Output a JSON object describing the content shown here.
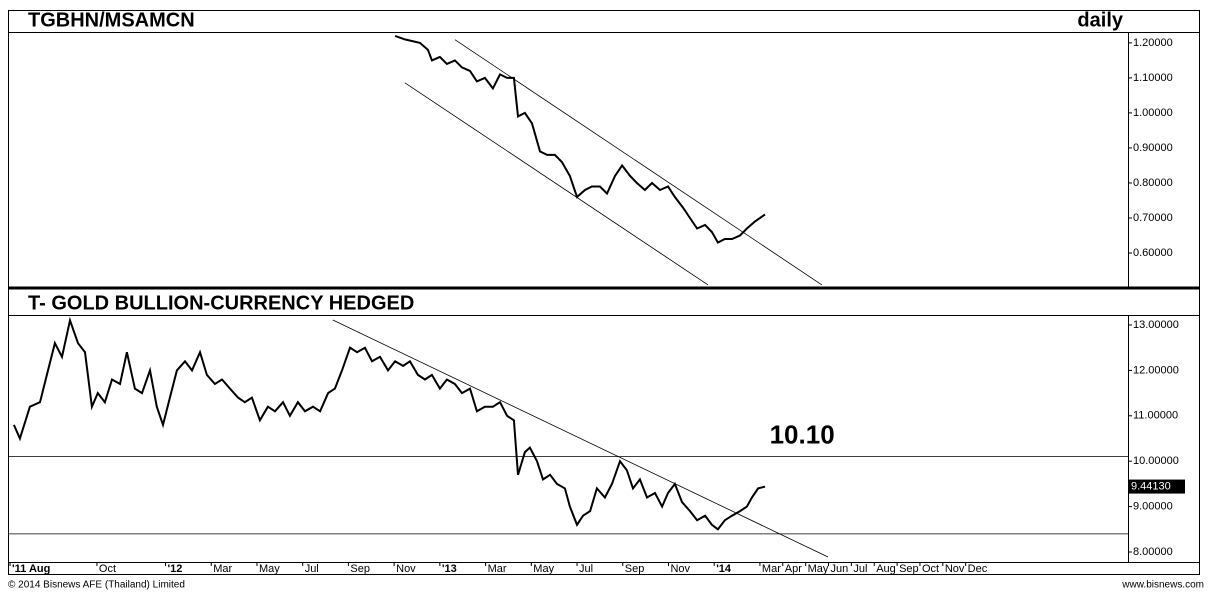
{
  "chart_data": [
    {
      "type": "line",
      "title": "TGBHN/MSAMCN",
      "subtitle": "daily",
      "color": "#000000",
      "x": [
        22.04,
        22.47,
        23.13,
        23.48,
        23.65,
        24.0,
        24.31,
        24.66,
        24.97,
        25.32,
        25.62,
        25.97,
        26.32,
        26.63,
        26.94,
        27.24,
        27.42,
        27.72,
        28.03,
        28.38,
        28.69,
        29.03,
        29.34,
        29.69,
        30.0,
        30.35,
        30.65,
        31.0,
        31.31,
        31.66,
        31.97,
        32.32,
        32.62,
        32.97,
        33.28,
        33.63,
        33.98,
        34.28,
        34.63,
        34.94,
        35.25,
        35.6,
        35.9,
        36.16,
        36.47,
        36.78,
        37.13,
        37.43,
        37.78,
        38.22
      ],
      "values": [
        1.22,
        1.21,
        1.2,
        1.18,
        1.15,
        1.16,
        1.14,
        1.15,
        1.13,
        1.12,
        1.09,
        1.1,
        1.07,
        1.11,
        1.1,
        1.1,
        0.99,
        1.0,
        0.97,
        0.89,
        0.88,
        0.88,
        0.86,
        0.82,
        0.76,
        0.78,
        0.79,
        0.79,
        0.77,
        0.82,
        0.85,
        0.82,
        0.8,
        0.78,
        0.8,
        0.78,
        0.79,
        0.76,
        0.73,
        0.7,
        0.67,
        0.68,
        0.66,
        0.63,
        0.64,
        0.64,
        0.65,
        0.67,
        0.69,
        0.71
      ],
      "xlim": [
        5.11,
        54.1
      ],
      "ylim": [
        0.503,
        1.231
      ],
      "yticks": [
        {
          "value": 0.6,
          "label": "0.60000"
        },
        {
          "value": 0.7,
          "label": "0.70000"
        },
        {
          "value": 0.8,
          "label": "0.80000"
        },
        {
          "value": 0.9,
          "label": "0.90000"
        },
        {
          "value": 1.0,
          "label": "1.00000"
        },
        {
          "value": 1.1,
          "label": "1.10000"
        },
        {
          "value": 1.2,
          "label": "1.20000"
        }
      ],
      "trendlines": [
        {
          "x": [
            24.66,
            40.71
          ],
          "y": [
            1.209,
            0.509
          ]
        },
        {
          "x": [
            22.47,
            35.73
          ],
          "y": [
            1.086,
            0.509
          ]
        }
      ]
    },
    {
      "type": "line",
      "title": "T- GOLD BULLION-CURRENCY HEDGED",
      "color": "#000000",
      "x": [
        5.37,
        5.63,
        6.07,
        6.51,
        6.86,
        7.16,
        7.47,
        7.82,
        8.17,
        8.48,
        8.78,
        9.04,
        9.35,
        9.66,
        10.01,
        10.31,
        10.66,
        10.97,
        11.32,
        11.62,
        11.89,
        12.19,
        12.5,
        12.85,
        13.16,
        13.51,
        13.81,
        14.16,
        14.47,
        14.82,
        15.17,
        15.47,
        15.78,
        16.13,
        16.48,
        16.79,
        17.14,
        17.44,
        17.79,
        18.1,
        18.45,
        18.76,
        19.11,
        19.41,
        19.72,
        20.07,
        20.38,
        20.72,
        21.03,
        21.38,
        21.73,
        22.04,
        22.39,
        22.69,
        23.04,
        23.35,
        23.65,
        24.0,
        24.31,
        24.66,
        24.97,
        25.32,
        25.62,
        25.97,
        26.32,
        26.63,
        26.94,
        27.24,
        27.42,
        27.72,
        27.94,
        28.25,
        28.51,
        28.82,
        29.12,
        29.47,
        29.69,
        30.0,
        30.26,
        30.57,
        30.87,
        31.22,
        31.53,
        31.88,
        32.18,
        32.45,
        32.75,
        33.06,
        33.41,
        33.72,
        33.98,
        34.28,
        34.59,
        34.94,
        35.25,
        35.6,
        35.9,
        36.16,
        36.47,
        36.78,
        37.13,
        37.43,
        37.65,
        37.92,
        38.22
      ],
      "values": [
        10.8,
        10.5,
        11.2,
        11.3,
        12.0,
        12.6,
        12.3,
        13.1,
        12.6,
        12.4,
        11.2,
        11.5,
        11.3,
        11.8,
        11.7,
        12.4,
        11.6,
        11.5,
        12.0,
        11.2,
        10.8,
        11.4,
        12.0,
        12.2,
        12.0,
        12.4,
        11.9,
        11.7,
        11.8,
        11.6,
        11.4,
        11.3,
        11.4,
        10.9,
        11.2,
        11.1,
        11.3,
        11.0,
        11.3,
        11.1,
        11.2,
        11.1,
        11.5,
        11.6,
        12.0,
        12.5,
        12.4,
        12.5,
        12.2,
        12.3,
        12.0,
        12.2,
        12.1,
        12.2,
        11.9,
        11.8,
        11.9,
        11.6,
        11.8,
        11.7,
        11.5,
        11.6,
        11.1,
        11.2,
        11.2,
        11.3,
        11.0,
        10.9,
        9.7,
        10.2,
        10.3,
        10.0,
        9.6,
        9.7,
        9.5,
        9.4,
        9.0,
        8.6,
        8.8,
        8.9,
        9.4,
        9.2,
        9.5,
        10.0,
        9.8,
        9.4,
        9.6,
        9.2,
        9.3,
        9.0,
        9.3,
        9.5,
        9.1,
        8.9,
        8.7,
        8.8,
        8.6,
        8.5,
        8.7,
        8.8,
        8.9,
        9.0,
        9.2,
        9.4,
        9.44
      ],
      "xlim": [
        5.11,
        54.1
      ],
      "ylim": [
        7.78,
        13.22
      ],
      "yticks": [
        {
          "value": 8,
          "label": "8.00000"
        },
        {
          "value": 9,
          "label": "9.00000"
        },
        {
          "value": 10,
          "label": "10.00000"
        },
        {
          "value": 11,
          "label": "11.00000"
        },
        {
          "value": 12,
          "label": "12.00000"
        },
        {
          "value": 13,
          "label": "13.00000"
        }
      ],
      "xticks": [
        {
          "value": 5.2,
          "label": "'11 Aug"
        },
        {
          "value": 9,
          "label": "Oct"
        },
        {
          "value": 12,
          "label": "'12"
        },
        {
          "value": 14,
          "label": "Mar"
        },
        {
          "value": 16,
          "label": "May"
        },
        {
          "value": 18,
          "label": "Jul"
        },
        {
          "value": 20,
          "label": "Sep"
        },
        {
          "value": 22,
          "label": "Nov"
        },
        {
          "value": 24,
          "label": "'13"
        },
        {
          "value": 26,
          "label": "Mar"
        },
        {
          "value": 28,
          "label": "May"
        },
        {
          "value": 30,
          "label": "Jul"
        },
        {
          "value": 32,
          "label": "Sep"
        },
        {
          "value": 34,
          "label": "Nov"
        },
        {
          "value": 36,
          "label": "'14"
        },
        {
          "value": 38,
          "label": "Mar"
        },
        {
          "value": 39,
          "label": "Apr"
        },
        {
          "value": 40,
          "label": "May"
        },
        {
          "value": 41,
          "label": "Jun"
        },
        {
          "value": 42,
          "label": "Jul"
        },
        {
          "value": 43,
          "label": "Aug"
        },
        {
          "value": 44,
          "label": "Sep"
        },
        {
          "value": 45,
          "label": "Oct"
        },
        {
          "value": 46,
          "label": "Nov"
        },
        {
          "value": 47,
          "label": "Dec"
        }
      ],
      "trendlines": [
        {
          "x": [
            19.32,
            40.98
          ],
          "y": [
            13.11,
            7.89
          ]
        }
      ],
      "levels": [
        {
          "value": 10.1,
          "label": "10.10"
        },
        {
          "value": 8.4
        }
      ],
      "last_label": {
        "value": 9.4413,
        "label": "9.44130"
      }
    }
  ],
  "footer": {
    "left": "© 2014 Bisnews AFE (Thailand) Limited",
    "right": "www.bisnews.com"
  }
}
